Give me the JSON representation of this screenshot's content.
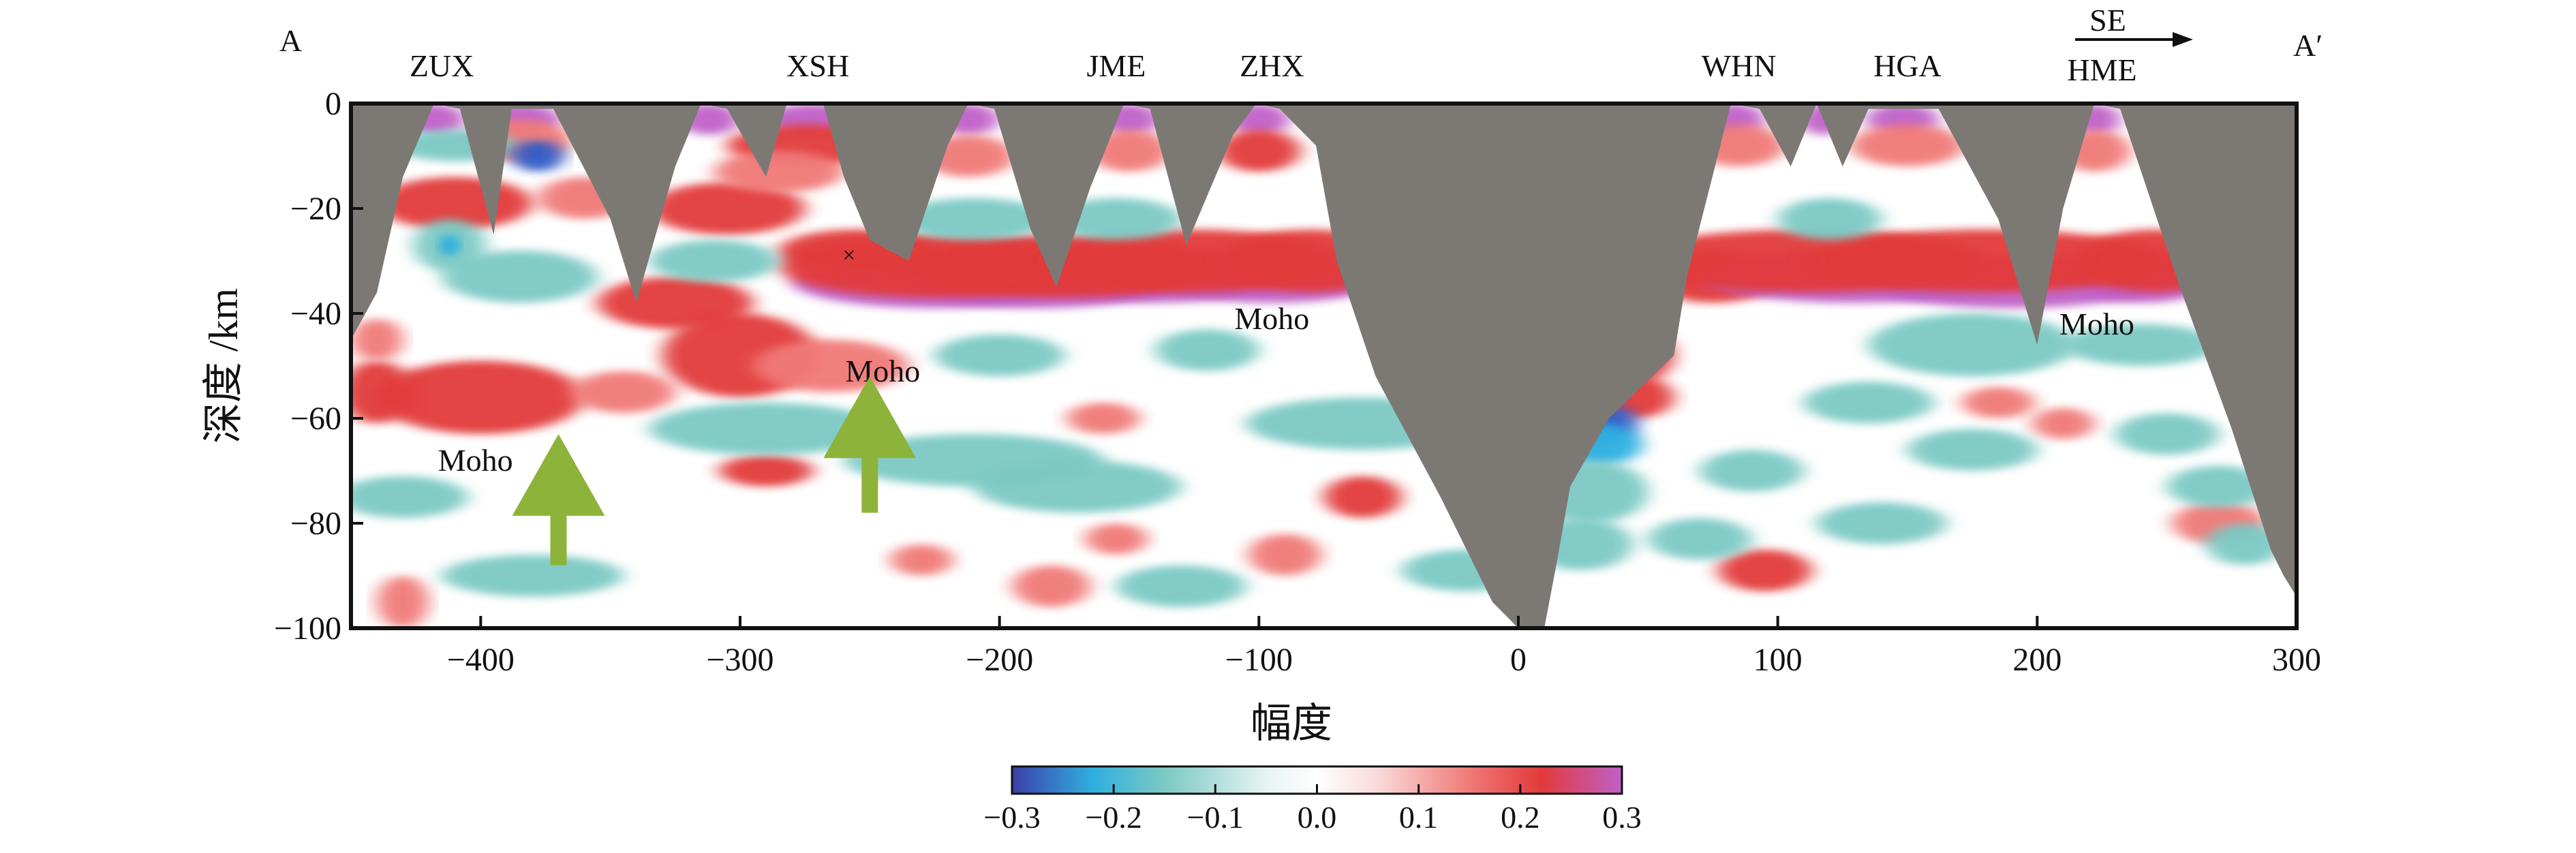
{
  "chart_data": {
    "type": "heatmap",
    "title": "",
    "profile": {
      "start": "A",
      "end": "A′",
      "direction": "SE"
    },
    "xlabel": "幅度",
    "ylabel": "深度 /km",
    "xlim": [
      -450,
      300
    ],
    "ylim": [
      -100,
      0
    ],
    "xticks": [
      -400,
      -300,
      -200,
      -100,
      0,
      100,
      200,
      300
    ],
    "yticks": [
      0,
      -20,
      -40,
      -60,
      -80,
      -100
    ],
    "xtick_labels": [
      "−400",
      "−300",
      "−200",
      "−100",
      "0",
      "100",
      "200",
      "300"
    ],
    "ytick_labels": [
      "0",
      "−20",
      "−40",
      "−60",
      "−80",
      "−100"
    ],
    "stations": [
      {
        "name": "ZUX",
        "x": -415
      },
      {
        "name": "XSH",
        "x": -270
      },
      {
        "name": "JME",
        "x": -155
      },
      {
        "name": "ZHX",
        "x": -95
      },
      {
        "name": "WHN",
        "x": 85
      },
      {
        "name": "HGA",
        "x": 150
      },
      {
        "name": "HME",
        "x": 225
      }
    ],
    "station_apexes": [
      -418,
      -385,
      -312,
      -278,
      -260,
      -212,
      -150,
      -100,
      83,
      118,
      146,
      222
    ],
    "moho_labels": [
      {
        "text": "Moho",
        "x": -402,
        "y": -70
      },
      {
        "text": "Moho",
        "x": -245,
        "y": -53
      },
      {
        "text": "Moho",
        "x": -95,
        "y": -43
      },
      {
        "text": "Moho",
        "x": 223,
        "y": -44
      }
    ],
    "arrows": [
      {
        "x": -370,
        "tip_depth": -63,
        "tail_depth": -88,
        "color": "#8db33a"
      },
      {
        "x": -250,
        "tip_depth": -52,
        "tail_depth": -78,
        "color": "#8db33a"
      }
    ],
    "marker": {
      "symbol": "×",
      "x": -258,
      "y": -29
    },
    "moho_band": [
      {
        "x": -240,
        "depth": -35
      },
      {
        "x": -200,
        "depth": -34
      },
      {
        "x": -150,
        "depth": -32
      },
      {
        "x": -100,
        "depth": -33
      },
      {
        "x": -70,
        "depth": -34
      }
    ],
    "moho_band_east": [
      {
        "x": 75,
        "depth": -34
      },
      {
        "x": 120,
        "depth": -32
      },
      {
        "x": 180,
        "depth": -33
      },
      {
        "x": 250,
        "depth": -32
      }
    ],
    "colorbar": {
      "min": -0.3,
      "max": 0.3,
      "ticks": [
        "−0.3",
        "−0.2",
        "−0.1",
        "0.0",
        "0.1",
        "0.2",
        "0.3"
      ],
      "stops": [
        {
          "v": -0.3,
          "color": "#3b3fa8"
        },
        {
          "v": -0.22,
          "color": "#2fb0e0"
        },
        {
          "v": -0.15,
          "color": "#7cc9c4"
        },
        {
          "v": -0.05,
          "color": "#e6f4f2"
        },
        {
          "v": 0.0,
          "color": "#ffffff"
        },
        {
          "v": 0.06,
          "color": "#f9dada"
        },
        {
          "v": 0.15,
          "color": "#f07a78"
        },
        {
          "v": 0.22,
          "color": "#e23a3a"
        },
        {
          "v": 0.3,
          "color": "#c060c8"
        }
      ]
    }
  }
}
